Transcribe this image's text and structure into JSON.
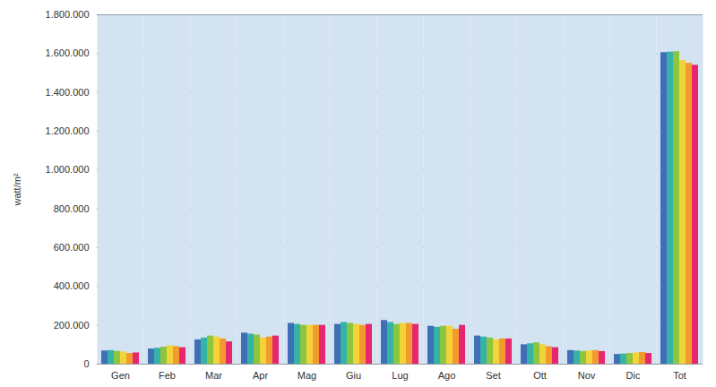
{
  "chart_data": {
    "type": "bar",
    "ylabel": "watt/m²",
    "categories": [
      "Gen",
      "Feb",
      "Mar",
      "Apr",
      "Mag",
      "Giu",
      "Lug",
      "Ago",
      "Set",
      "Ott",
      "Nov",
      "Dic",
      "Tot"
    ],
    "series": [
      {
        "color": "#3f6fb5",
        "values": [
          68000,
          78000,
          125000,
          160000,
          210000,
          205000,
          225000,
          195000,
          145000,
          100000,
          70000,
          50000,
          1605000
        ]
      },
      {
        "color": "#35b3a8",
        "values": [
          70000,
          82000,
          135000,
          155000,
          205000,
          215000,
          215000,
          190000,
          140000,
          105000,
          68000,
          52000,
          1608000
        ]
      },
      {
        "color": "#8cc63f",
        "values": [
          66000,
          88000,
          145000,
          150000,
          200000,
          210000,
          205000,
          195000,
          135000,
          110000,
          65000,
          55000,
          1610000
        ]
      },
      {
        "color": "#f2d33a",
        "values": [
          63000,
          95000,
          140000,
          135000,
          200000,
          205000,
          210000,
          195000,
          125000,
          100000,
          68000,
          58000,
          1565000
        ]
      },
      {
        "color": "#f39a2e",
        "values": [
          55000,
          90000,
          130000,
          140000,
          200000,
          200000,
          210000,
          180000,
          130000,
          90000,
          70000,
          60000,
          1550000
        ]
      },
      {
        "color": "#e6266e",
        "values": [
          58000,
          85000,
          115000,
          145000,
          200000,
          205000,
          205000,
          200000,
          130000,
          85000,
          65000,
          55000,
          1540000
        ]
      }
    ],
    "ylim": [
      0,
      1800000
    ],
    "yticks": [
      0,
      {
        "value": 200000,
        "label": "200.000"
      },
      {
        "value": 400000,
        "label": "400.000"
      },
      {
        "value": 600000,
        "label": "600.000"
      },
      {
        "value": 800000,
        "label": "800.000"
      },
      {
        "value": 1000000,
        "label": "1.000.000"
      },
      {
        "value": 1200000,
        "label": "1.200.000"
      },
      {
        "value": 1400000,
        "label": "1.400.000"
      },
      {
        "value": 1600000,
        "label": "1.600.000"
      },
      {
        "value": 1800000,
        "label": "1.800.000"
      }
    ],
    "grid": true
  }
}
